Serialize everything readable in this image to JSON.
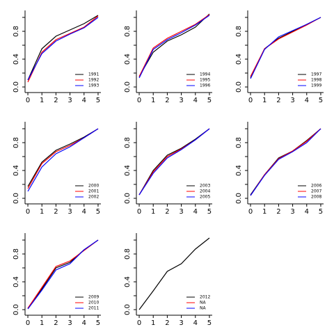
{
  "chart_data": [
    {
      "type": "line",
      "x": [
        0,
        1,
        2,
        3,
        4,
        5
      ],
      "xlim": [
        -0.2,
        5.2
      ],
      "xticks": [
        0,
        1,
        2,
        3,
        4,
        5
      ],
      "ylim": [
        -0.08,
        1.1
      ],
      "yticks": [
        {
          "value": 0,
          "label": "0.0"
        },
        {
          "value": 0.2,
          "label": null
        },
        {
          "value": 0.4,
          "label": "0.4"
        },
        {
          "value": 0.6,
          "label": null
        },
        {
          "value": 0.8,
          "label": "0.8"
        },
        {
          "value": 1,
          "label": null
        }
      ],
      "series": [
        {
          "name": "1991",
          "color": "black",
          "values": [
            0.1,
            0.55,
            0.73,
            0.82,
            0.91,
            1.03
          ]
        },
        {
          "name": "1992",
          "color": "red",
          "values": [
            0.07,
            0.5,
            0.68,
            0.77,
            0.86,
            1.02
          ]
        },
        {
          "name": "1993",
          "color": "blue",
          "values": [
            0.1,
            0.48,
            0.66,
            0.76,
            0.85,
            1.0
          ]
        }
      ]
    },
    {
      "type": "line",
      "x": [
        0,
        1,
        2,
        3,
        4,
        5
      ],
      "xlim": [
        -0.2,
        5.2
      ],
      "xticks": [
        0,
        1,
        2,
        3,
        4,
        5
      ],
      "ylim": [
        -0.08,
        1.1
      ],
      "yticks": [
        {
          "value": 0,
          "label": "0.0"
        },
        {
          "value": 0.2,
          "label": null
        },
        {
          "value": 0.4,
          "label": "0.4"
        },
        {
          "value": 0.6,
          "label": null
        },
        {
          "value": 0.8,
          "label": "0.8"
        },
        {
          "value": 1,
          "label": null
        }
      ],
      "series": [
        {
          "name": "1994",
          "color": "black",
          "values": [
            0.15,
            0.5,
            0.66,
            0.75,
            0.86,
            1.05
          ]
        },
        {
          "name": "1995",
          "color": "red",
          "values": [
            0.15,
            0.56,
            0.7,
            0.8,
            0.9,
            1.04
          ]
        },
        {
          "name": "1996",
          "color": "blue",
          "values": [
            0.13,
            0.54,
            0.68,
            0.78,
            0.89,
            1.03
          ]
        }
      ]
    },
    {
      "type": "line",
      "x": [
        0,
        1,
        2,
        3,
        4,
        5
      ],
      "xlim": [
        -0.2,
        5.2
      ],
      "xticks": [
        0,
        1,
        2,
        3,
        4,
        5
      ],
      "ylim": [
        -0.08,
        1.1
      ],
      "yticks": [
        {
          "value": 0,
          "label": "0.0"
        },
        {
          "value": 0.2,
          "label": null
        },
        {
          "value": 0.4,
          "label": "0.4"
        },
        {
          "value": 0.6,
          "label": null
        },
        {
          "value": 0.8,
          "label": "0.8"
        },
        {
          "value": 1,
          "label": null
        }
      ],
      "series": [
        {
          "name": "1997",
          "color": "black",
          "values": [
            0.13,
            0.55,
            0.7,
            0.8,
            0.9,
            1.0
          ]
        },
        {
          "name": "1998",
          "color": "red",
          "values": [
            0.15,
            0.55,
            0.69,
            0.79,
            0.89,
            1.0
          ]
        },
        {
          "name": "1999",
          "color": "blue",
          "values": [
            0.12,
            0.54,
            0.72,
            0.81,
            0.9,
            1.0
          ]
        }
      ]
    },
    {
      "type": "line",
      "x": [
        0,
        1,
        2,
        3,
        4,
        5
      ],
      "xlim": [
        -0.2,
        5.2
      ],
      "xticks": [
        0,
        1,
        2,
        3,
        4,
        5
      ],
      "ylim": [
        -0.08,
        1.1
      ],
      "yticks": [
        {
          "value": 0,
          "label": "0.0"
        },
        {
          "value": 0.2,
          "label": null
        },
        {
          "value": 0.4,
          "label": "0.4"
        },
        {
          "value": 0.6,
          "label": null
        },
        {
          "value": 0.8,
          "label": "0.8"
        },
        {
          "value": 1,
          "label": null
        }
      ],
      "series": [
        {
          "name": "2000",
          "color": "black",
          "values": [
            0.17,
            0.52,
            0.69,
            0.78,
            0.88,
            1.0
          ]
        },
        {
          "name": "2001",
          "color": "red",
          "values": [
            0.14,
            0.5,
            0.67,
            0.76,
            0.87,
            1.0
          ]
        },
        {
          "name": "2002",
          "color": "blue",
          "values": [
            0.1,
            0.45,
            0.64,
            0.74,
            0.87,
            1.0
          ]
        }
      ]
    },
    {
      "type": "line",
      "x": [
        0,
        1,
        2,
        3,
        4,
        5
      ],
      "xlim": [
        -0.2,
        5.2
      ],
      "xticks": [
        0,
        1,
        2,
        3,
        4,
        5
      ],
      "ylim": [
        -0.08,
        1.1
      ],
      "yticks": [
        {
          "value": 0,
          "label": "0.0"
        },
        {
          "value": 0.2,
          "label": null
        },
        {
          "value": 0.4,
          "label": "0.4"
        },
        {
          "value": 0.6,
          "label": null
        },
        {
          "value": 0.8,
          "label": "0.8"
        },
        {
          "value": 1,
          "label": null
        }
      ],
      "series": [
        {
          "name": "2003",
          "color": "black",
          "values": [
            0.05,
            0.4,
            0.62,
            0.72,
            0.85,
            1.0
          ]
        },
        {
          "name": "2004",
          "color": "red",
          "values": [
            0.05,
            0.38,
            0.6,
            0.71,
            0.84,
            1.0
          ]
        },
        {
          "name": "2005",
          "color": "blue",
          "values": [
            0.05,
            0.36,
            0.58,
            0.7,
            0.84,
            1.0
          ]
        }
      ]
    },
    {
      "type": "line",
      "x": [
        0,
        1,
        2,
        3,
        4,
        5
      ],
      "xlim": [
        -0.2,
        5.2
      ],
      "xticks": [
        0,
        1,
        2,
        3,
        4,
        5
      ],
      "ylim": [
        -0.08,
        1.1
      ],
      "yticks": [
        {
          "value": 0,
          "label": "0.0"
        },
        {
          "value": 0.2,
          "label": null
        },
        {
          "value": 0.4,
          "label": "0.4"
        },
        {
          "value": 0.6,
          "label": null
        },
        {
          "value": 0.8,
          "label": "0.8"
        },
        {
          "value": 1,
          "label": null
        }
      ],
      "series": [
        {
          "name": "2006",
          "color": "black",
          "values": [
            0.05,
            0.34,
            0.58,
            0.68,
            0.83,
            1.0
          ]
        },
        {
          "name": "2007",
          "color": "red",
          "values": [
            0.04,
            0.34,
            0.57,
            0.68,
            0.82,
            1.0
          ]
        },
        {
          "name": "2008",
          "color": "blue",
          "values": [
            0.04,
            0.33,
            0.56,
            0.67,
            0.8,
            1.0
          ]
        }
      ]
    },
    {
      "type": "line",
      "x": [
        0,
        1,
        2,
        3,
        4,
        5
      ],
      "xlim": [
        -0.2,
        5.2
      ],
      "xticks": [
        0,
        1,
        2,
        3,
        4,
        5
      ],
      "ylim": [
        -0.08,
        1.1
      ],
      "yticks": [
        {
          "value": 0,
          "label": "0.0"
        },
        {
          "value": 0.2,
          "label": null
        },
        {
          "value": 0.4,
          "label": "0.4"
        },
        {
          "value": 0.6,
          "label": null
        },
        {
          "value": 0.8,
          "label": "0.8"
        },
        {
          "value": 1,
          "label": null
        }
      ],
      "series": [
        {
          "name": "2009",
          "color": "black",
          "values": [
            0.02,
            0.3,
            0.6,
            0.68,
            0.86,
            1.0
          ]
        },
        {
          "name": "2010",
          "color": "red",
          "values": [
            0.02,
            0.32,
            0.62,
            0.7,
            0.85,
            1.0
          ]
        },
        {
          "name": "2011",
          "color": "blue",
          "values": [
            0.01,
            0.28,
            0.57,
            0.66,
            0.86,
            1.0
          ]
        }
      ]
    },
    {
      "type": "line",
      "x": [
        0,
        1,
        2,
        3,
        4,
        5
      ],
      "xlim": [
        -0.2,
        5.2
      ],
      "xticks": [
        0,
        1,
        2,
        3,
        4,
        5
      ],
      "ylim": [
        -0.08,
        1.1
      ],
      "yticks": [
        {
          "value": 0,
          "label": "0.0"
        },
        {
          "value": 0.2,
          "label": null
        },
        {
          "value": 0.4,
          "label": "0.4"
        },
        {
          "value": 0.6,
          "label": null
        },
        {
          "value": 0.8,
          "label": "0.8"
        },
        {
          "value": 1,
          "label": null
        }
      ],
      "series": [
        {
          "name": "2012",
          "color": "black",
          "values": [
            0,
            0.27,
            0.55,
            0.66,
            0.87,
            1.03
          ]
        },
        {
          "name": "NA",
          "color": "red",
          "values": [
            null,
            null,
            null,
            null,
            null,
            null
          ]
        },
        {
          "name": "NA",
          "color": "blue",
          "values": [
            null,
            null,
            null,
            null,
            null,
            null
          ]
        }
      ]
    }
  ]
}
